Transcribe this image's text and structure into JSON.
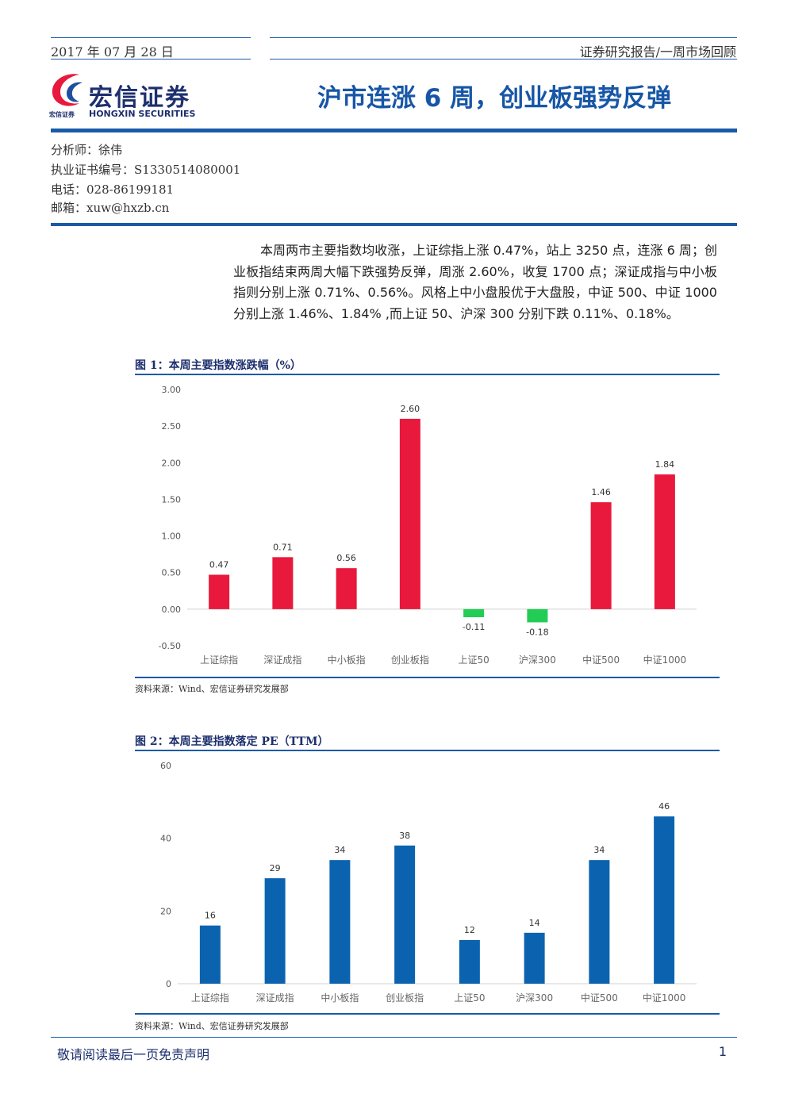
{
  "header": {
    "date": "2017 年 07 月 28 日",
    "report_type": "证券研究报告/一周市场回顾"
  },
  "logo": {
    "name_cn": "宏信证券",
    "name_en": "HONGXIN SECURITIES",
    "small_text": "宏信证券"
  },
  "title": "沪市连涨 6 周，创业板强势反弹",
  "analyst": {
    "name": "分析师：徐伟",
    "license": "执业证书编号：S1330514080001",
    "phone": "电话：028-86199181",
    "email": "邮箱：xuw@hxzb.cn"
  },
  "summary": "本周两市主要指数均收涨，上证综指上涨 0.47%，站上 3250 点，连涨 6 周；创业板指结束两周大幅下跌强势反弹，周涨 2.60%，收复 1700 点；深证成指与中小板指则分别上涨 0.71%、0.56%。风格上中小盘股优于大盘股，中证 500、中证 1000 分别上涨 1.46%、1.84% ,而上证 50、沪深 300 分别下跌 0.11%、0.18%。",
  "figures": {
    "fig1_title": "图 1：本周主要指数涨跌幅（%）",
    "fig1_source": "资料来源：Wind、宏信证券研究发展部",
    "fig2_title": "图 2：本周主要指数落定 PE（TTM）",
    "fig2_source": "资料来源：Wind、宏信证券研究发展部"
  },
  "footer": {
    "disclaimer": "敬请阅读最后一页免责声明",
    "page_number": "1"
  },
  "chart_data": [
    {
      "type": "bar",
      "categories": [
        "上证综指",
        "深证成指",
        "中小板指",
        "创业板指",
        "上证50",
        "沪深300",
        "中证500",
        "中证1000"
      ],
      "values": [
        0.47,
        0.71,
        0.56,
        2.6,
        -0.11,
        -0.18,
        1.46,
        1.84
      ],
      "value_labels": [
        "0.47",
        "0.71",
        "0.56",
        "2.60",
        "-0.11",
        "-0.18",
        "1.46",
        "1.84"
      ],
      "ylim": [
        -0.5,
        3.0
      ],
      "yticks": [
        "-0.50",
        "0.00",
        "0.50",
        "1.00",
        "1.50",
        "2.00",
        "2.50",
        "3.00"
      ],
      "ytick_values": [
        -0.5,
        0,
        0.5,
        1.0,
        1.5,
        2.0,
        2.5,
        3.0
      ],
      "positive_color": "#e8193c",
      "negative_color": "#22cc55",
      "grid": false
    },
    {
      "type": "bar",
      "categories": [
        "上证综指",
        "深证成指",
        "中小板指",
        "创业板指",
        "上证50",
        "沪深300",
        "中证500",
        "中证1000"
      ],
      "values": [
        16,
        29,
        34,
        38,
        12,
        14,
        34,
        46
      ],
      "value_labels": [
        "16",
        "29",
        "34",
        "38",
        "12",
        "14",
        "34",
        "46"
      ],
      "ylim": [
        0,
        60
      ],
      "yticks": [
        "0",
        "20",
        "40",
        "60"
      ],
      "ytick_values": [
        0,
        20,
        40,
        60
      ],
      "bar_color": "#0b63b0",
      "grid": false
    }
  ]
}
